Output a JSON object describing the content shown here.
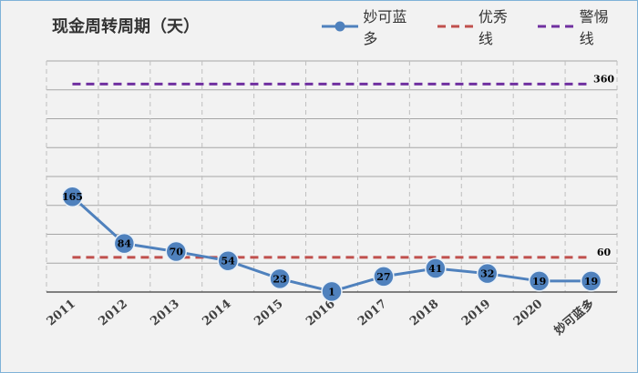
{
  "chart_data": {
    "type": "line",
    "title": "现金周转周期（天）",
    "categories": [
      "2011",
      "2012",
      "2013",
      "2014",
      "2015",
      "2016",
      "2017",
      "2018",
      "2019",
      "2020",
      "妙可蓝多"
    ],
    "series": [
      {
        "name": "妙可蓝多",
        "values": [
          165,
          84,
          70,
          54,
          23,
          1,
          27,
          41,
          32,
          19,
          19
        ],
        "color": "#4f81bd",
        "style": "solid-marker"
      },
      {
        "name": "优秀线",
        "values": [
          60,
          60,
          60,
          60,
          60,
          60,
          60,
          60,
          60,
          60,
          60
        ],
        "color": "#c0504d",
        "style": "dashed",
        "end_label": "60"
      },
      {
        "name": "警惕线",
        "values": [
          360,
          360,
          360,
          360,
          360,
          360,
          360,
          360,
          360,
          360,
          360
        ],
        "color": "#7030a0",
        "style": "dashed",
        "end_label": "360"
      }
    ],
    "ylim": [
      0,
      400
    ],
    "grid": true,
    "legend_position": "top-right",
    "xlabel": "",
    "ylabel": ""
  }
}
